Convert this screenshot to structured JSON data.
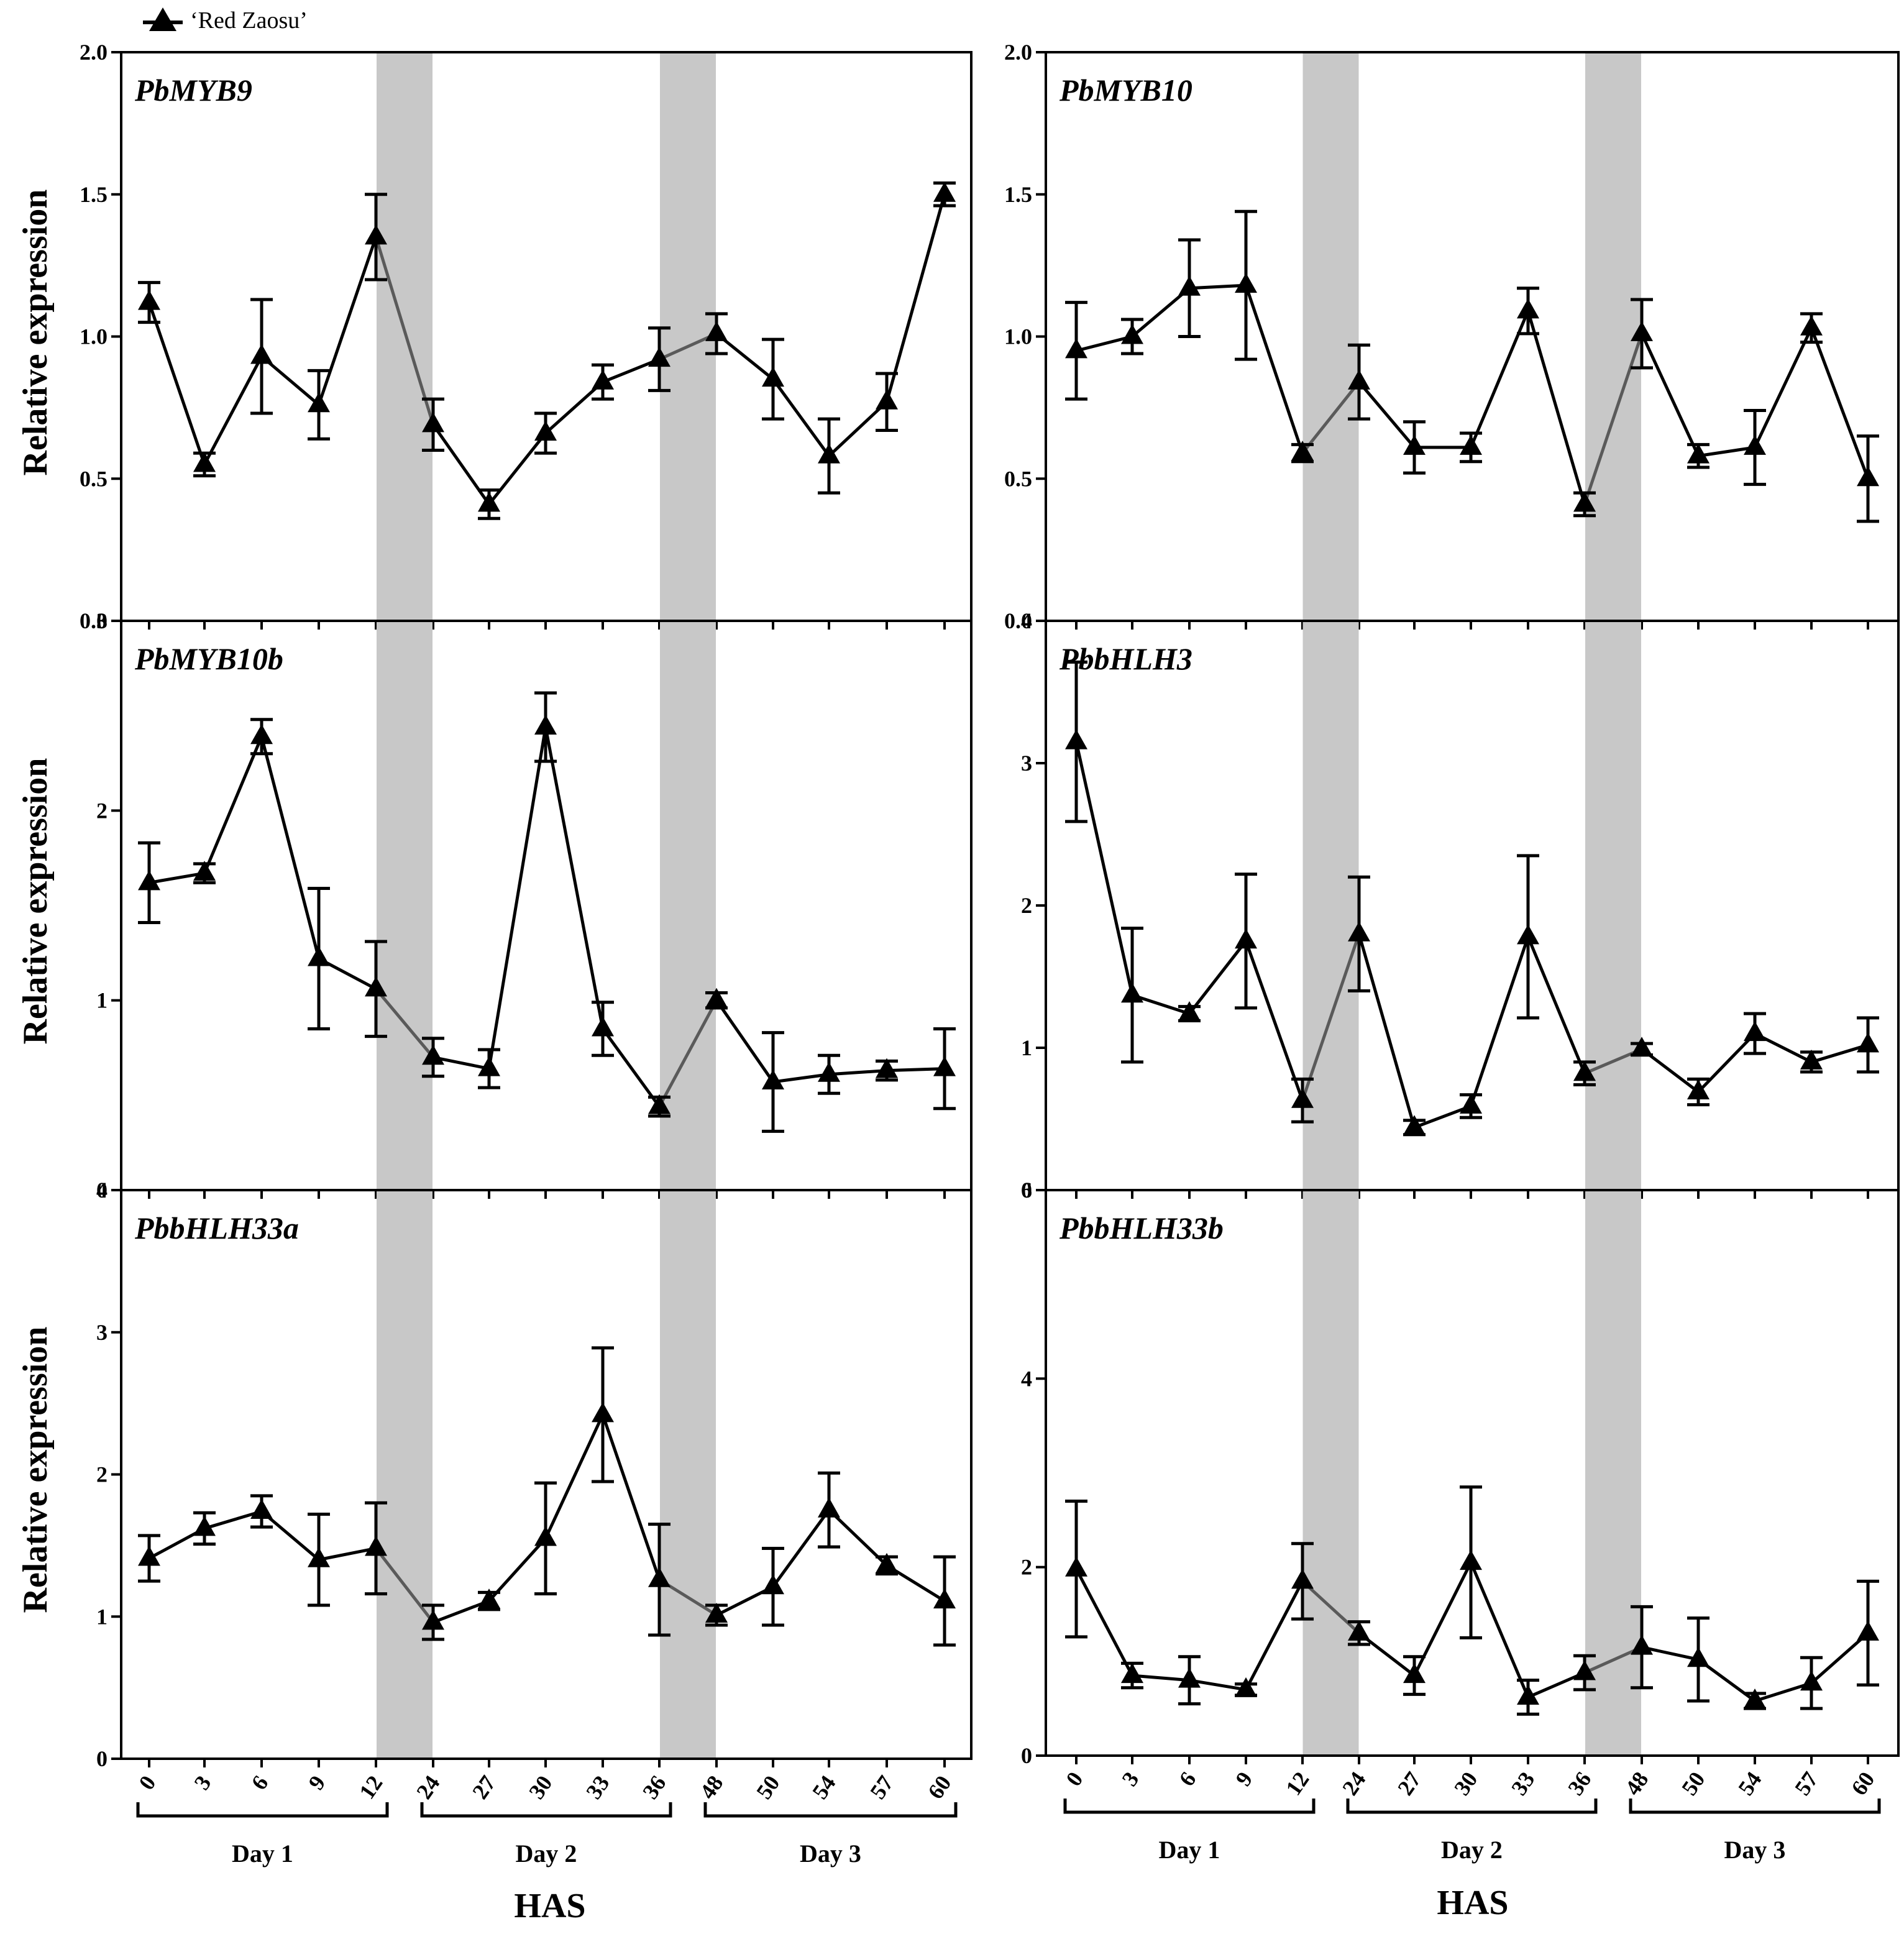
{
  "legend": {
    "label": "‘Red Zaosu’"
  },
  "colors": {
    "line": "#000000",
    "shade": "#c8c8c8",
    "light_segment": "#5a5a5a"
  },
  "bottom": {
    "xlabel": "HAS",
    "days": [
      "Day 1",
      "Day 2",
      "Day 3"
    ]
  },
  "chart_data": [
    {
      "type": "line",
      "title": "PbMYB9",
      "ylabel": "Relative expression",
      "ylim": [
        0,
        2.0
      ],
      "yticks": [
        "0.0",
        "0.5",
        "1.0",
        "1.5",
        "2.0"
      ],
      "ytick_values": [
        0,
        0.5,
        1.0,
        1.5,
        2.0
      ],
      "categories": [
        "0",
        "3",
        "6",
        "9",
        "12",
        "24",
        "27",
        "30",
        "33",
        "36",
        "48",
        "50",
        "54",
        "57",
        "60"
      ],
      "shaded_intervals": [
        [
          4,
          5
        ],
        [
          9,
          10
        ]
      ],
      "series": [
        {
          "name": "‘Red Zaosu’",
          "values": [
            1.12,
            0.55,
            0.93,
            0.76,
            1.35,
            0.69,
            0.41,
            0.66,
            0.84,
            0.92,
            1.01,
            0.85,
            0.58,
            0.77,
            1.5
          ],
          "errors": [
            0.07,
            0.04,
            0.2,
            0.12,
            0.15,
            0.09,
            0.05,
            0.07,
            0.06,
            0.11,
            0.07,
            0.14,
            0.13,
            0.1,
            0.04
          ]
        }
      ]
    },
    {
      "type": "line",
      "title": "PbMYB10",
      "ylabel": "",
      "ylim": [
        0,
        2.0
      ],
      "yticks": [
        "0.0",
        "0.5",
        "1.0",
        "1.5",
        "2.0"
      ],
      "ytick_values": [
        0,
        0.5,
        1.0,
        1.5,
        2.0
      ],
      "categories": [
        "0",
        "3",
        "6",
        "9",
        "12",
        "24",
        "27",
        "30",
        "33",
        "36",
        "48",
        "50",
        "54",
        "57",
        "60"
      ],
      "shaded_intervals": [
        [
          4,
          5
        ],
        [
          9,
          10
        ]
      ],
      "series": [
        {
          "name": "‘Red Zaosu’",
          "values": [
            0.95,
            1.0,
            1.17,
            1.18,
            0.59,
            0.84,
            0.61,
            0.61,
            1.09,
            0.41,
            1.01,
            0.58,
            0.61,
            1.03,
            0.5
          ],
          "errors": [
            0.17,
            0.06,
            0.17,
            0.26,
            0.03,
            0.13,
            0.09,
            0.05,
            0.08,
            0.04,
            0.12,
            0.04,
            0.13,
            0.05,
            0.15
          ]
        }
      ]
    },
    {
      "type": "line",
      "title": "PbMYB10b",
      "ylabel": "Relative expression",
      "ylim": [
        0,
        3.0
      ],
      "yticks": [
        "0",
        "1",
        "2",
        "3"
      ],
      "ytick_values": [
        0,
        1,
        2,
        3
      ],
      "categories": [
        "0",
        "3",
        "6",
        "9",
        "12",
        "24",
        "27",
        "30",
        "33",
        "36",
        "48",
        "50",
        "54",
        "57",
        "60"
      ],
      "shaded_intervals": [
        [
          4,
          5
        ],
        [
          9,
          10
        ]
      ],
      "series": [
        {
          "name": "‘Red Zaosu’",
          "values": [
            1.62,
            1.67,
            2.39,
            1.22,
            1.06,
            0.7,
            0.64,
            2.44,
            0.85,
            0.44,
            1.0,
            0.57,
            0.61,
            0.63,
            0.64
          ],
          "errors": [
            0.21,
            0.05,
            0.09,
            0.37,
            0.25,
            0.1,
            0.1,
            0.18,
            0.14,
            0.05,
            0.04,
            0.26,
            0.1,
            0.05,
            0.21
          ]
        }
      ]
    },
    {
      "type": "line",
      "title": "PbbHLH3",
      "ylabel": "",
      "ylim": [
        0,
        4.0
      ],
      "yticks": [
        "0",
        "1",
        "2",
        "3",
        "4"
      ],
      "ytick_values": [
        0,
        1,
        2,
        3,
        4
      ],
      "categories": [
        "0",
        "3",
        "6",
        "9",
        "12",
        "24",
        "27",
        "30",
        "33",
        "36",
        "48",
        "50",
        "54",
        "57",
        "60"
      ],
      "shaded_intervals": [
        [
          4,
          5
        ],
        [
          9,
          10
        ]
      ],
      "series": [
        {
          "name": "‘Red Zaosu’",
          "values": [
            3.15,
            1.37,
            1.24,
            1.75,
            0.63,
            1.8,
            0.44,
            0.59,
            1.78,
            0.82,
            0.99,
            0.69,
            1.1,
            0.9,
            1.02
          ],
          "errors": [
            0.56,
            0.47,
            0.05,
            0.47,
            0.15,
            0.4,
            0.05,
            0.08,
            0.57,
            0.08,
            0.04,
            0.09,
            0.14,
            0.07,
            0.19
          ]
        }
      ]
    },
    {
      "type": "line",
      "title": "PbbHLH33a",
      "ylabel": "Relative expression",
      "ylim": [
        0,
        4.0
      ],
      "yticks": [
        "0",
        "1",
        "2",
        "3",
        "4"
      ],
      "ytick_values": [
        0,
        1,
        2,
        3,
        4
      ],
      "categories": [
        "0",
        "3",
        "6",
        "9",
        "12",
        "24",
        "27",
        "30",
        "33",
        "36",
        "48",
        "50",
        "54",
        "57",
        "60"
      ],
      "shaded_intervals": [
        [
          4,
          5
        ],
        [
          9,
          10
        ]
      ],
      "series": [
        {
          "name": "‘Red Zaosu’",
          "values": [
            1.41,
            1.62,
            1.74,
            1.4,
            1.48,
            0.96,
            1.11,
            1.55,
            2.42,
            1.26,
            1.01,
            1.21,
            1.75,
            1.36,
            1.11
          ],
          "errors": [
            0.16,
            0.11,
            0.11,
            0.32,
            0.32,
            0.12,
            0.06,
            0.39,
            0.47,
            0.39,
            0.07,
            0.27,
            0.26,
            0.06,
            0.31
          ]
        }
      ]
    },
    {
      "type": "line",
      "title": "PbbHLH33b",
      "ylabel": "",
      "ylim": [
        0,
        6.0
      ],
      "yticks": [
        "0",
        "2",
        "4",
        "6"
      ],
      "ytick_values": [
        0,
        2,
        4,
        6
      ],
      "categories": [
        "0",
        "3",
        "6",
        "9",
        "12",
        "24",
        "27",
        "30",
        "33",
        "36",
        "48",
        "50",
        "54",
        "57",
        "60"
      ],
      "shaded_intervals": [
        [
          4,
          5
        ],
        [
          9,
          10
        ]
      ],
      "series": [
        {
          "name": "‘Red Zaosu’",
          "values": [
            1.98,
            0.85,
            0.8,
            0.7,
            1.85,
            1.3,
            0.85,
            2.05,
            0.62,
            0.88,
            1.15,
            1.02,
            0.58,
            0.77,
            1.3
          ],
          "errors": [
            0.72,
            0.13,
            0.25,
            0.06,
            0.4,
            0.12,
            0.2,
            0.8,
            0.18,
            0.18,
            0.43,
            0.44,
            0.08,
            0.27,
            0.55
          ]
        }
      ]
    }
  ]
}
